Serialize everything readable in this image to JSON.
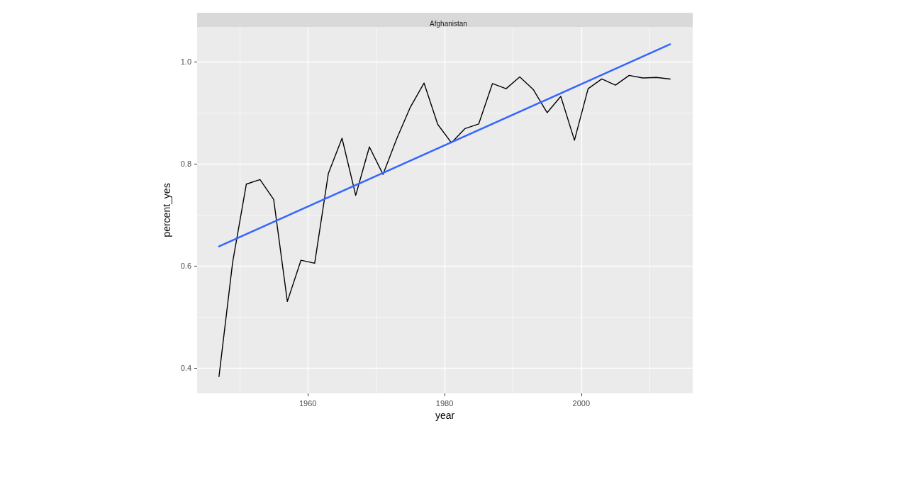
{
  "chart_data": {
    "type": "line",
    "title": "Afghanistan",
    "xlabel": "year",
    "ylabel": "percent_yes",
    "x": [
      1947,
      1949,
      1951,
      1953,
      1955,
      1957,
      1959,
      1961,
      1963,
      1965,
      1967,
      1969,
      1971,
      1973,
      1975,
      1977,
      1979,
      1981,
      1983,
      1985,
      1987,
      1989,
      1991,
      1993,
      1995,
      1997,
      1999,
      2001,
      2003,
      2005,
      2007,
      2009,
      2011,
      2013
    ],
    "series": [
      {
        "color": "#000000",
        "values": [
          0.383,
          0.607,
          0.76,
          0.769,
          0.73,
          0.53,
          0.611,
          0.605,
          0.781,
          0.85,
          0.738,
          0.833,
          0.779,
          0.849,
          0.911,
          0.958,
          0.877,
          0.841,
          0.869,
          0.878,
          0.957,
          0.947,
          0.97,
          0.945,
          0.9,
          0.932,
          0.846,
          0.947,
          0.966,
          0.954,
          0.973,
          0.968,
          0.969,
          0.966
        ]
      },
      {
        "type": "line",
        "color": "#3366ff",
        "x": [
          1947,
          2013
        ],
        "values": [
          0.638,
          1.034
        ]
      }
    ],
    "xlim": [
      1943.8,
      2016.3
    ],
    "ylim": [
      0.35,
      1.068
    ],
    "xticks": [
      1960,
      1980,
      2000
    ],
    "yticks": [
      {
        "value": 0.4,
        "label": "0.4"
      },
      {
        "value": 0.6,
        "label": "0.6"
      },
      {
        "value": 0.8,
        "label": "0.8"
      },
      {
        "value": 1.0,
        "label": "1.0"
      }
    ],
    "grid": true,
    "marker": "none",
    "line_style": "solid"
  }
}
